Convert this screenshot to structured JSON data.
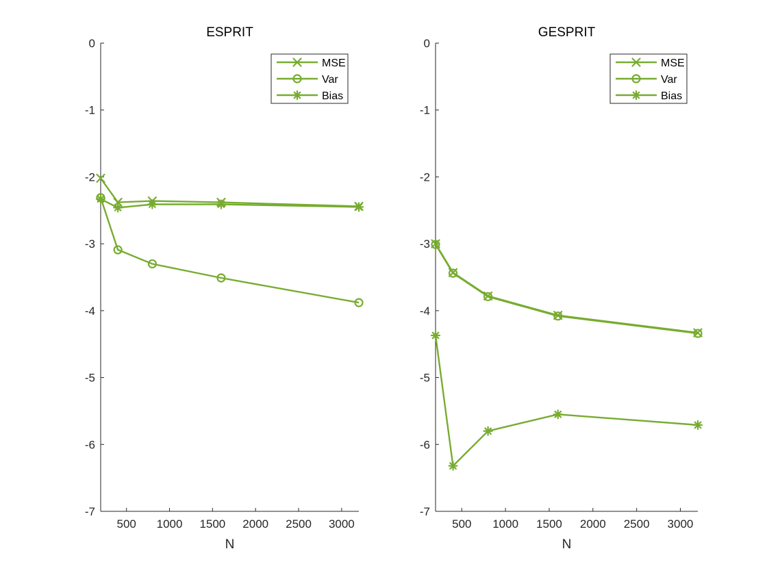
{
  "series_color": "#77AC30",
  "chart_data": [
    {
      "type": "line",
      "title": "ESPRIT",
      "xlabel": "N",
      "ylabel": "",
      "xlim": [
        200,
        3200
      ],
      "ylim": [
        -7,
        0
      ],
      "xticks": [
        500,
        1000,
        1500,
        2000,
        2500,
        3000
      ],
      "yticks": [
        0,
        -1,
        -2,
        -3,
        -4,
        -5,
        -6,
        -7
      ],
      "x": [
        200,
        400,
        800,
        1600,
        3200
      ],
      "legend_position": "top-right",
      "grid": false,
      "series": [
        {
          "name": "MSE",
          "marker": "x",
          "values": [
            -2.02,
            -2.38,
            -2.36,
            -2.38,
            -2.44
          ]
        },
        {
          "name": "Var",
          "marker": "o",
          "values": [
            -2.31,
            -3.09,
            -3.3,
            -3.51,
            -3.88
          ]
        },
        {
          "name": "Bias",
          "marker": "*",
          "values": [
            -2.33,
            -2.46,
            -2.41,
            -2.41,
            -2.45
          ]
        }
      ]
    },
    {
      "type": "line",
      "title": "GESPRIT",
      "xlabel": "N",
      "ylabel": "",
      "xlim": [
        200,
        3200
      ],
      "ylim": [
        -7,
        0
      ],
      "xticks": [
        500,
        1000,
        1500,
        2000,
        2500,
        3000
      ],
      "yticks": [
        0,
        -1,
        -2,
        -3,
        -4,
        -5,
        -6,
        -7
      ],
      "x": [
        200,
        400,
        800,
        1600,
        3200
      ],
      "legend_position": "top-right",
      "grid": false,
      "series": [
        {
          "name": "MSE",
          "marker": "x",
          "values": [
            -3.0,
            -3.43,
            -3.78,
            -4.07,
            -4.33
          ]
        },
        {
          "name": "Var",
          "marker": "o",
          "values": [
            -3.01,
            -3.44,
            -3.79,
            -4.08,
            -4.34
          ]
        },
        {
          "name": "Bias",
          "marker": "*",
          "values": [
            -4.37,
            -6.32,
            -5.8,
            -5.55,
            -5.71
          ]
        }
      ]
    }
  ]
}
